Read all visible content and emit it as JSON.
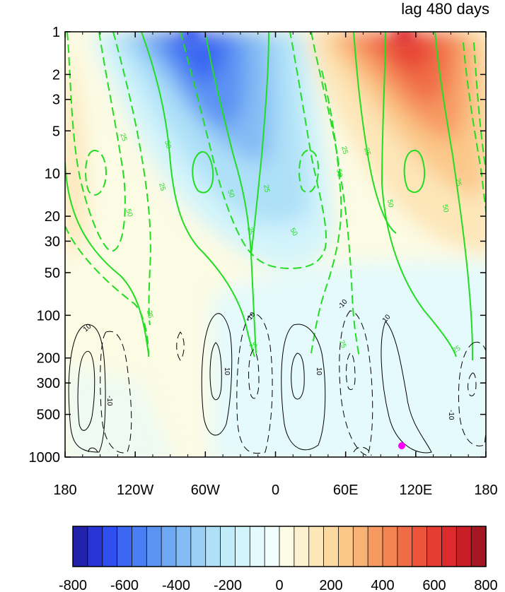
{
  "chart_data": {
    "type": "heatmap",
    "title": "lag 480 days",
    "x_axis": {
      "ticks": [
        -180,
        -120,
        -60,
        0,
        60,
        120,
        180
      ],
      "tick_labels": [
        "180",
        "120W",
        "60W",
        "0",
        "60E",
        "120E",
        "180"
      ],
      "range": [
        -180,
        180
      ]
    },
    "y_axis": {
      "scale": "log",
      "reversed": true,
      "ticks": [
        1,
        2,
        3,
        5,
        10,
        20,
        30,
        50,
        100,
        200,
        300,
        500,
        1000
      ],
      "tick_labels": [
        "1",
        "2",
        "3",
        "5",
        "10",
        "20",
        "30",
        "50",
        "100",
        "200",
        "300",
        "500",
        "1000"
      ],
      "range": [
        1,
        1000
      ]
    },
    "colorbar": {
      "levels": [
        -800,
        -750,
        -700,
        -650,
        -600,
        -550,
        -500,
        -450,
        -400,
        -350,
        -300,
        -250,
        -200,
        -150,
        -100,
        -50,
        0,
        50,
        100,
        150,
        200,
        250,
        300,
        350,
        400,
        450,
        500,
        550,
        600,
        650,
        700,
        750,
        800
      ],
      "tick_labels": [
        "-800",
        "-600",
        "-400",
        "-200",
        "0",
        "200",
        "400",
        "600",
        "800"
      ],
      "colors": [
        "#2222aa",
        "#2a35d8",
        "#2f4ff0",
        "#3a66f2",
        "#4a7ef4",
        "#5b93f3",
        "#6ea8f3",
        "#84bcf4",
        "#9ad0f6",
        "#aee0f8",
        "#c0ecfa",
        "#d2f4fb",
        "#e4fafc",
        "#f1fdfd",
        "#fcfbe4",
        "#fdf1cf",
        "#fde6b8",
        "#fcd9a0",
        "#fbc88a",
        "#f9b275",
        "#f79a62",
        "#f48452",
        "#f06c46",
        "#ec543b",
        "#e63d33",
        "#dc2a2d",
        "#c81f27",
        "#a51623"
      ]
    },
    "filled_field": [
      {
        "lon": -150,
        "pressure": 8,
        "value": 100
      },
      {
        "lon": -60,
        "pressure": 1,
        "value": -600
      },
      {
        "lon": -60,
        "pressure": 5,
        "value": -450
      },
      {
        "lon": -30,
        "pressure": 30,
        "value": -150
      },
      {
        "lon": 0,
        "pressure": 100,
        "value": -20
      },
      {
        "lon": 60,
        "pressure": 10,
        "value": 150
      },
      {
        "lon": 120,
        "pressure": 1,
        "value": 600
      },
      {
        "lon": 120,
        "pressure": 5,
        "value": 450
      },
      {
        "lon": 150,
        "pressure": 30,
        "value": 150
      },
      {
        "lon": -120,
        "pressure": 300,
        "value": 30
      },
      {
        "lon": 60,
        "pressure": 300,
        "value": -50
      }
    ],
    "green_contour_labels": [
      "25",
      "50"
    ],
    "black_contour_labels": [
      "10",
      "-10"
    ],
    "marker": {
      "lon": 107,
      "pressure": 870,
      "color": "#ff00ff"
    },
    "grid": false,
    "legend": "colorbar-bottom"
  }
}
